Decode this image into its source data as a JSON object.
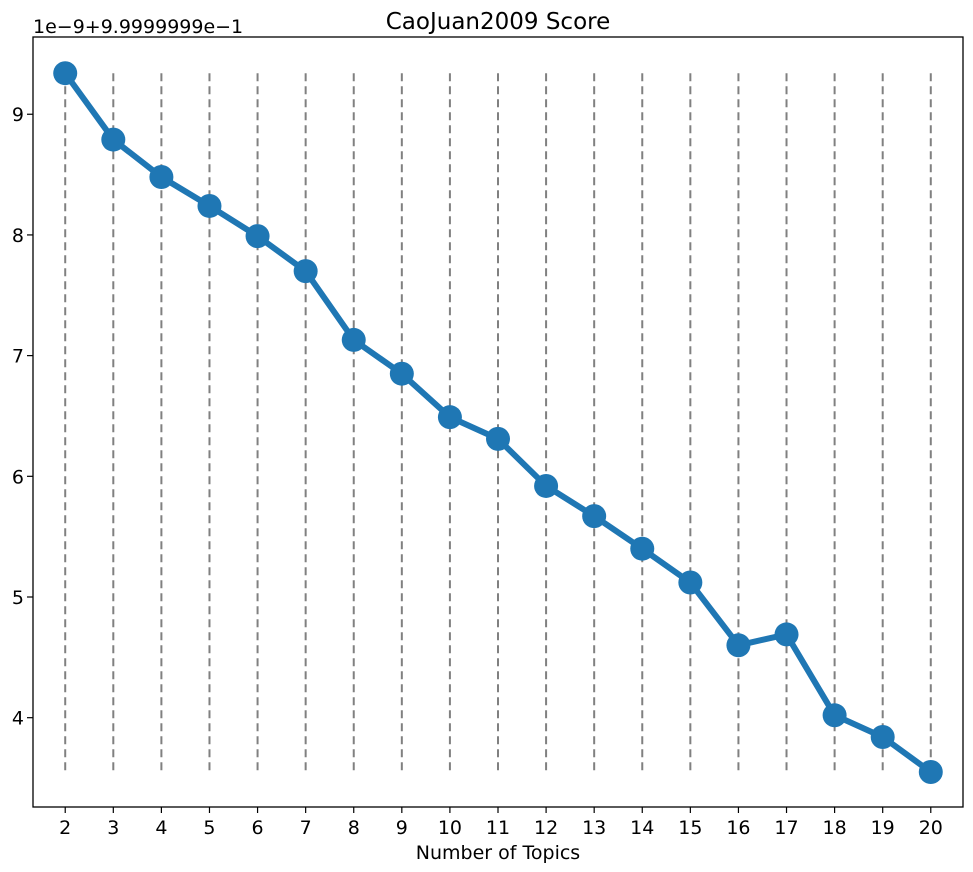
{
  "chart_data": {
    "type": "line",
    "title": "CaoJuan2009 Score",
    "xlabel": "Number of Topics",
    "ylabel": "",
    "y_offset_text": "1e−9+9.9999999e−1",
    "x": [
      2,
      3,
      4,
      5,
      6,
      7,
      8,
      9,
      10,
      11,
      12,
      13,
      14,
      15,
      16,
      17,
      18,
      19,
      20
    ],
    "x_tick_labels": [
      "2",
      "3",
      "4",
      "5",
      "6",
      "7",
      "8",
      "9",
      "10",
      "11",
      "12",
      "13",
      "14",
      "15",
      "16",
      "17",
      "18",
      "19",
      "20"
    ],
    "series": [
      {
        "values": [
          9.34,
          8.79,
          8.48,
          8.24,
          7.99,
          7.7,
          7.13,
          6.85,
          6.49,
          6.31,
          5.92,
          5.67,
          5.4,
          5.12,
          4.6,
          4.69,
          4.02,
          3.84,
          3.55
        ],
        "color": "#1f77b4",
        "marker": "circle"
      }
    ],
    "y_ticks": [
      4,
      5,
      6,
      7,
      8,
      9
    ],
    "y_tick_labels": [
      "4",
      "5",
      "6",
      "7",
      "8",
      "9"
    ],
    "ylim": [
      3.26,
      9.64
    ],
    "xlim": [
      1.33,
      20.67
    ],
    "vlines": {
      "x": [
        2,
        3,
        4,
        5,
        6,
        7,
        8,
        9,
        10,
        11,
        12,
        13,
        14,
        15,
        16,
        17,
        18,
        19,
        20
      ],
      "ymin": 3.55,
      "ymax": 9.34,
      "style": "dashed",
      "color": "#808080"
    },
    "grid": false,
    "legend": "none"
  }
}
